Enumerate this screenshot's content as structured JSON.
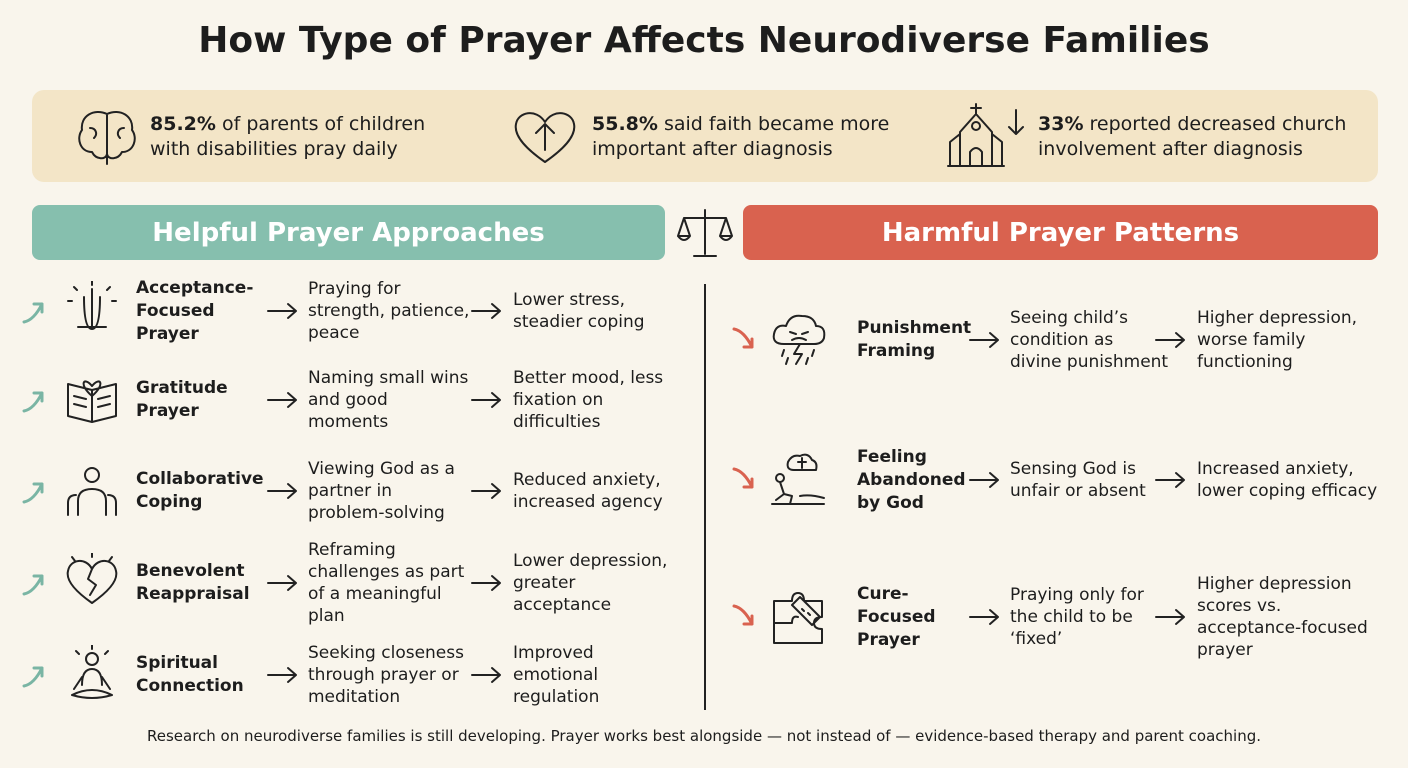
{
  "title": "How Type of Prayer Affects Neurodiverse Families",
  "stats": [
    {
      "highlight": "85.2%",
      "text": "of parents of children with disabilities pray daily"
    },
    {
      "highlight": "55.8%",
      "text": "said faith became more important after diagnosis"
    },
    {
      "highlight": "33%",
      "text": "reported decreased church involvement after diagnosis"
    }
  ],
  "helpful": {
    "heading": "Helpful Prayer Approaches",
    "rows": [
      {
        "name": "Acceptance-Focused Prayer",
        "practice": "Praying for strength, patience, peace",
        "outcome": "Lower stress, steadier coping"
      },
      {
        "name": "Gratitude Prayer",
        "practice": "Naming small wins and good moments",
        "outcome": "Better mood, less fixation on difficulties"
      },
      {
        "name": "Collaborative Coping",
        "practice": "Viewing God as a partner in problem-solving",
        "outcome": "Reduced anxiety, increased agency"
      },
      {
        "name": "Benevolent Reappraisal",
        "practice": "Reframing challenges as part of a meaningful plan",
        "outcome": "Lower depression, greater acceptance"
      },
      {
        "name": "Spiritual Connection",
        "practice": "Seeking closeness through prayer or meditation",
        "outcome": "Improved emotional regulation"
      }
    ]
  },
  "harmful": {
    "heading": "Harmful Prayer Patterns",
    "rows": [
      {
        "name": "Punishment Framing",
        "practice": "Seeing child’s condition as divine punishment",
        "outcome": "Higher depression, worse family functioning"
      },
      {
        "name": "Feeling Abandoned by God",
        "practice": "Sensing God is unfair or absent",
        "outcome": "Increased anxiety, lower coping efficacy"
      },
      {
        "name": "Cure-Focused Prayer",
        "practice": "Praying only for the child to be ‘fixed’",
        "outcome": "Higher depression scores vs. acceptance-focused prayer"
      }
    ]
  },
  "footer": "Research on neurodiverse families is still developing. Prayer works best alongside — not instead of — evidence-based therapy and parent coaching."
}
